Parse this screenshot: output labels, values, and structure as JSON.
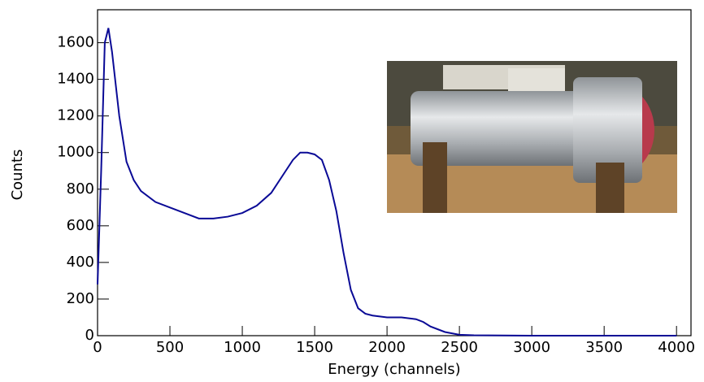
{
  "chart_data": {
    "type": "line",
    "x_label": "Energy (channels)",
    "y_label": "Counts",
    "x": [
      0,
      25,
      50,
      75,
      100,
      150,
      200,
      250,
      300,
      400,
      500,
      600,
      700,
      800,
      900,
      1000,
      1100,
      1200,
      1300,
      1350,
      1400,
      1450,
      1500,
      1550,
      1600,
      1650,
      1700,
      1750,
      1800,
      1850,
      1900,
      2000,
      2100,
      2200,
      2250,
      2300,
      2400,
      2500,
      2600,
      3000,
      4000
    ],
    "series": [
      {
        "color": "#0a0a96",
        "values": [
          280,
          900,
          1600,
          1680,
          1550,
          1200,
          950,
          850,
          790,
          730,
          700,
          670,
          640,
          640,
          650,
          670,
          710,
          780,
          900,
          960,
          1000,
          1000,
          990,
          960,
          850,
          680,
          450,
          250,
          150,
          120,
          110,
          100,
          100,
          90,
          75,
          50,
          20,
          5,
          2,
          0,
          0
        ]
      }
    ],
    "xlim": [
      0,
      4100
    ],
    "ylim": [
      0,
      1780
    ],
    "xticks": [
      0,
      500,
      1000,
      1500,
      2000,
      2500,
      3000,
      3500,
      4000
    ],
    "yticks": [
      0,
      200,
      400,
      600,
      800,
      1000,
      1200,
      1400,
      1600
    ]
  }
}
